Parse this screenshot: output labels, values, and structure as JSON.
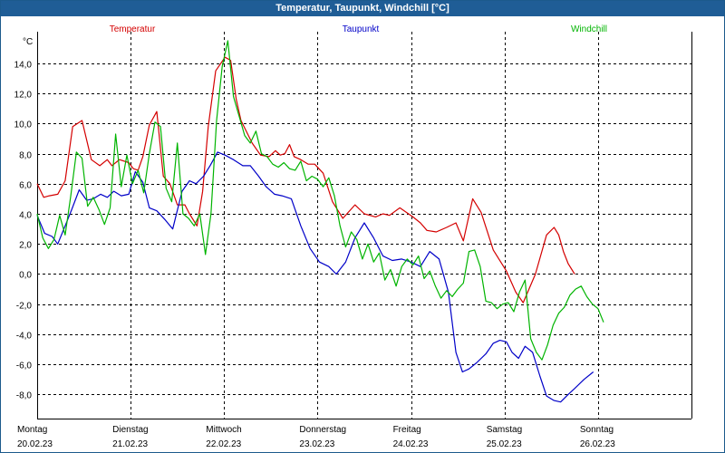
{
  "window": {
    "title": "Temperatur, Taupunkt, Windchill [°C]"
  },
  "colors": {
    "title_bar": "#1f5d96",
    "temperatur": "#d40000",
    "taupunkt": "#0000c8",
    "windchill": "#00b400",
    "grid": "#000000"
  },
  "chart_data": {
    "type": "line",
    "title": "Temperatur, Taupunkt, Windchill [°C]",
    "ylabel": "°C",
    "ylim": [
      -9.6,
      16.1
    ],
    "yticks": [
      -8.0,
      -6.0,
      -4.0,
      -2.0,
      0.0,
      2.0,
      4.0,
      6.0,
      8.0,
      10.0,
      12.0,
      14.0
    ],
    "ytick_labels": [
      "-8,0",
      "-6,0",
      "-4,0",
      "-2,0",
      "0,0",
      "2,0",
      "4,0",
      "6,0",
      "8,0",
      "10,0",
      "12,0",
      "14,0"
    ],
    "xlim": [
      0,
      7
    ],
    "x_unit": "days from Montag 20.02.23 00:00",
    "x_day_labels": [
      {
        "weekday": "Montag",
        "date": "20.02.23"
      },
      {
        "weekday": "Dienstag",
        "date": "21.02.23"
      },
      {
        "weekday": "Mittwoch",
        "date": "22.02.23"
      },
      {
        "weekday": "Donnerstag",
        "date": "23.02.23"
      },
      {
        "weekday": "Freitag",
        "date": "24.02.23"
      },
      {
        "weekday": "Samstag",
        "date": "25.02.23"
      },
      {
        "weekday": "Sonntag",
        "date": "26.02.23"
      }
    ],
    "grid": true,
    "legend": "top",
    "series": [
      {
        "name": "Temperatur",
        "color": "#d40000",
        "x": [
          0,
          0.07,
          0.13,
          0.22,
          0.3,
          0.38,
          0.48,
          0.58,
          0.67,
          0.75,
          0.8,
          0.88,
          0.98,
          1.03,
          1.08,
          1.13,
          1.2,
          1.28,
          1.35,
          1.42,
          1.5,
          1.58,
          1.63,
          1.71,
          1.77,
          1.83,
          1.91,
          2.01,
          2.07,
          2.13,
          2.18,
          2.3,
          2.39,
          2.48,
          2.55,
          2.6,
          2.65,
          2.7,
          2.75,
          2.82,
          2.9,
          2.97,
          3.06,
          3.16,
          3.27,
          3.4,
          3.5,
          3.62,
          3.7,
          3.77,
          3.88,
          4.02,
          4.1,
          4.17,
          4.27,
          4.38,
          4.48,
          4.56,
          4.66,
          4.75,
          4.88,
          5.02,
          5.12,
          5.2,
          5.33,
          5.45,
          5.53,
          5.58,
          5.63,
          5.68,
          5.75,
          5.85,
          5.95,
          6.04,
          6.15,
          6.25,
          6.35,
          6.45,
          6.55,
          6.65,
          6.75,
          6.85,
          6.93,
          7.0
        ],
        "values": [
          6.0,
          5.1,
          5.2,
          5.3,
          6.2,
          9.8,
          10.2,
          7.6,
          7.2,
          7.6,
          7.2,
          7.6,
          7.4,
          7.0,
          6.9,
          7.8,
          9.9,
          10.8,
          6.5,
          6.0,
          4.6,
          4.6,
          4.0,
          3.2,
          5.5,
          9.8,
          13.5,
          14.4,
          14.2,
          11.6,
          10.2,
          8.7,
          7.9,
          7.8,
          8.2,
          7.9,
          8.0,
          8.6,
          7.8,
          7.6,
          7.3,
          7.3,
          6.7,
          4.8,
          3.7,
          4.6,
          4.0,
          3.8,
          4.0,
          3.9,
          4.4,
          3.8,
          3.4,
          2.9,
          2.8,
          3.1,
          3.4,
          2.2,
          5.0,
          4.1,
          1.6,
          0.2,
          -1.2,
          -1.9,
          0.0,
          2.6,
          3.1,
          2.6,
          1.5,
          0.7,
          0.0,
          null,
          null,
          null,
          null,
          null,
          null,
          null,
          null,
          null,
          null,
          null,
          null,
          null
        ]
      },
      {
        "name": "Taupunkt",
        "color": "#0000c8",
        "x": [
          0,
          0.08,
          0.16,
          0.22,
          0.3,
          0.37,
          0.45,
          0.53,
          0.6,
          0.68,
          0.75,
          0.82,
          0.9,
          0.98,
          1.05,
          1.13,
          1.2,
          1.28,
          1.37,
          1.45,
          1.55,
          1.63,
          1.7,
          1.78,
          1.85,
          1.93,
          2.01,
          2.1,
          2.2,
          2.28,
          2.37,
          2.45,
          2.54,
          2.62,
          2.72,
          2.82,
          2.92,
          3.02,
          3.12,
          3.2,
          3.3,
          3.4,
          3.5,
          3.6,
          3.7,
          3.8,
          3.9,
          4.0,
          4.1,
          4.2,
          4.3,
          4.4,
          4.48,
          4.55,
          4.62,
          4.7,
          4.8,
          4.88,
          4.95,
          5.02,
          5.08,
          5.15,
          5.22,
          5.3,
          5.38,
          5.45,
          5.53,
          5.6,
          5.68,
          5.75,
          5.85,
          5.95,
          6.05,
          6.12,
          6.2,
          6.3,
          6.4,
          6.5,
          6.6,
          6.7,
          6.8,
          6.9,
          7.0
        ],
        "values": [
          3.9,
          2.7,
          2.5,
          2.0,
          3.2,
          4.3,
          5.6,
          4.9,
          5.0,
          5.3,
          5.1,
          5.5,
          5.2,
          5.3,
          6.8,
          6.1,
          4.4,
          4.2,
          3.6,
          3.0,
          5.5,
          6.2,
          6.0,
          6.5,
          7.2,
          8.1,
          7.9,
          7.6,
          7.2,
          7.2,
          6.5,
          5.8,
          5.3,
          5.2,
          5.0,
          3.2,
          1.7,
          0.8,
          0.5,
          0.0,
          0.8,
          2.4,
          3.4,
          2.4,
          1.2,
          0.9,
          1.0,
          0.8,
          0.5,
          1.5,
          1.0,
          -1.2,
          -5.2,
          -6.5,
          -6.3,
          -5.9,
          -5.3,
          -4.6,
          -4.4,
          -4.5,
          -5.2,
          -5.6,
          -4.8,
          -5.2,
          -6.8,
          -8.1,
          -8.4,
          -8.5,
          -8.0,
          -7.6,
          -7.0,
          -6.5,
          null,
          null,
          null,
          null,
          null,
          null,
          null,
          null,
          null,
          null,
          null
        ]
      },
      {
        "name": "Windchill",
        "color": "#00b400",
        "x": [
          0,
          0.06,
          0.12,
          0.18,
          0.24,
          0.3,
          0.36,
          0.42,
          0.48,
          0.54,
          0.6,
          0.66,
          0.72,
          0.78,
          0.84,
          0.9,
          0.96,
          1.02,
          1.08,
          1.14,
          1.2,
          1.26,
          1.32,
          1.38,
          1.44,
          1.5,
          1.56,
          1.62,
          1.68,
          1.74,
          1.8,
          1.86,
          1.92,
          1.98,
          2.04,
          2.1,
          2.16,
          2.22,
          2.28,
          2.34,
          2.4,
          2.46,
          2.52,
          2.58,
          2.64,
          2.7,
          2.76,
          2.82,
          2.88,
          2.94,
          3.0,
          3.06,
          3.12,
          3.18,
          3.24,
          3.3,
          3.36,
          3.42,
          3.48,
          3.54,
          3.6,
          3.66,
          3.72,
          3.78,
          3.84,
          3.9,
          3.96,
          4.02,
          4.08,
          4.14,
          4.2,
          4.26,
          4.32,
          4.38,
          4.44,
          4.5,
          4.56,
          4.62,
          4.68,
          4.74,
          4.8,
          4.86,
          4.92,
          4.98,
          5.04,
          5.1,
          5.16,
          5.22,
          5.28,
          5.34,
          5.4,
          5.46,
          5.52,
          5.58,
          5.64,
          5.7,
          5.76,
          5.82,
          5.88,
          5.94,
          6.0,
          6.06,
          6.12,
          6.18,
          6.24,
          6.3,
          6.36,
          6.42,
          6.48,
          6.54,
          6.6,
          6.66,
          6.72,
          6.78,
          6.84,
          6.9,
          6.96,
          7.0
        ],
        "values": [
          4.0,
          2.4,
          1.7,
          2.3,
          3.9,
          2.6,
          5.2,
          8.1,
          7.7,
          4.5,
          5.1,
          4.3,
          3.3,
          4.4,
          9.3,
          5.8,
          7.9,
          6.0,
          6.9,
          5.4,
          8.0,
          10.1,
          9.8,
          5.7,
          4.8,
          8.7,
          4.0,
          3.7,
          3.2,
          4.0,
          1.3,
          4.0,
          10.2,
          13.8,
          15.5,
          11.8,
          10.5,
          9.2,
          8.7,
          9.5,
          8.0,
          7.8,
          7.3,
          7.1,
          7.4,
          7.0,
          6.9,
          7.5,
          6.2,
          6.5,
          6.3,
          5.8,
          6.4,
          5.2,
          3.2,
          1.8,
          2.8,
          2.3,
          1.0,
          2.0,
          0.8,
          1.4,
          -0.4,
          0.3,
          -0.8,
          0.5,
          1.0,
          0.6,
          1.2,
          -0.3,
          0.2,
          -0.8,
          -1.6,
          -1.1,
          -1.5,
          -1.0,
          -0.6,
          1.5,
          1.6,
          0.5,
          -1.8,
          -1.9,
          -2.3,
          -2.0,
          -1.9,
          -2.5,
          -1.2,
          -0.4,
          -4.3,
          -5.2,
          -5.7,
          -4.7,
          -3.4,
          -2.6,
          -2.2,
          -1.4,
          -1.0,
          -0.8,
          -1.5,
          -2.0,
          -2.3,
          -3.2,
          null,
          null,
          null,
          null,
          null,
          null,
          null,
          null,
          null,
          null,
          null,
          null,
          null,
          null,
          null,
          null
        ]
      }
    ]
  }
}
